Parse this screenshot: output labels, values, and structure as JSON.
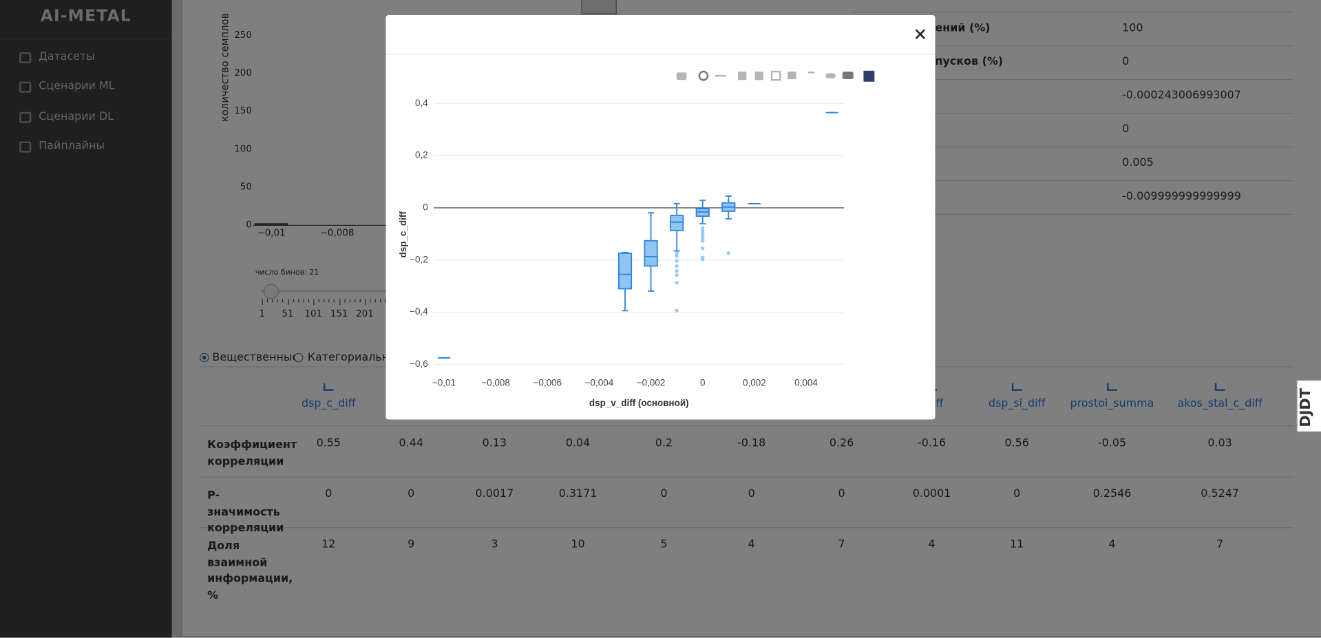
{
  "sidebar": {
    "logo": "AI-METAL",
    "menu": [
      "Датасеты",
      "Сценарии ML",
      "Сценарии DL",
      "Пайплайны"
    ]
  },
  "histogram": {
    "y_label": "количество семплов",
    "yticks": [
      0,
      50,
      100,
      150,
      200,
      250
    ],
    "xticks": [
      "−0,01",
      "−0,008"
    ],
    "bins_label": "число бинов: 21",
    "slider_ticks": [
      1,
      51,
      101,
      151,
      201
    ]
  },
  "stats": {
    "labels": [
      "ений (%)",
      "пусков (%)"
    ],
    "values": [
      100,
      0,
      -0.000243006993007,
      0,
      0.005,
      -0.009999999999999
    ]
  },
  "filter": {
    "options": [
      "Вещественные",
      "Категориальные"
    ]
  },
  "correlation": {
    "columns": [
      "dsp_c_diff",
      null,
      null,
      null,
      null,
      null,
      null,
      "_diff",
      "dsp_si_diff",
      "prostoi_summa",
      "akos_stal_c_diff"
    ],
    "rows": [
      {
        "label": "Коэффициент корреляции",
        "values": [
          0.55,
          0.44,
          0.13,
          0.04,
          0.2,
          -0.18,
          0.26,
          -0.16,
          0.56,
          -0.05,
          0.03
        ]
      },
      {
        "label": "P-значимость корреляции",
        "values": [
          0,
          0,
          0.0017,
          0.3171,
          0,
          0,
          0,
          0.0001,
          0,
          0.2546,
          0.5247
        ]
      },
      {
        "label": "Доля взаимной информации, %",
        "values": [
          12,
          9,
          3,
          10,
          5,
          4,
          7,
          4,
          11,
          4,
          7
        ]
      }
    ]
  },
  "modal": {
    "close": "×"
  },
  "djdt": "DJDT",
  "chart_data": {
    "type": "box",
    "x_label": "dsp_v_diff (основной)",
    "y_label": "dsp_c_diff",
    "xlim": [
      -0.01039,
      0.00547
    ],
    "ylim": [
      -0.64,
      0.435
    ],
    "xticks": [
      {
        "value": -0.01,
        "label": "−0,01"
      },
      {
        "value": -0.008,
        "label": "−0,008"
      },
      {
        "value": -0.006,
        "label": "−0,006"
      },
      {
        "value": -0.004,
        "label": "−0,004"
      },
      {
        "value": -0.002,
        "label": "−0,002"
      },
      0,
      {
        "value": 0.002,
        "label": "0,002"
      },
      {
        "value": 0.004,
        "label": "0,004"
      }
    ],
    "yticks": [
      {
        "value": -0.6,
        "label": "−0,6"
      },
      {
        "value": -0.4,
        "label": "−0,4"
      },
      {
        "value": -0.2,
        "label": "−0,2"
      },
      0,
      {
        "value": 0.2,
        "label": "0,2"
      },
      {
        "value": 0.4,
        "label": "0,4"
      }
    ],
    "grid": true,
    "color": "#2f86e0",
    "fill": "#8fc4f4",
    "boxes": [
      {
        "x": -0.01,
        "min": -0.575,
        "q1": -0.575,
        "median": -0.575,
        "q3": -0.575,
        "max": -0.575,
        "outliers": []
      },
      {
        "x": -0.003,
        "min": -0.394,
        "q1": -0.31,
        "median": -0.255,
        "q3": -0.174,
        "max": -0.171,
        "outliers": []
      },
      {
        "x": -0.002,
        "min": -0.319,
        "q1": -0.223,
        "median": -0.187,
        "q3": -0.126,
        "max": -0.019,
        "outliers": []
      },
      {
        "x": -0.001,
        "min": -0.165,
        "q1": -0.087,
        "median": -0.055,
        "q3": -0.029,
        "max": 0.016,
        "outliers": [
          -0.174,
          -0.184,
          -0.203,
          -0.223,
          -0.242,
          -0.258,
          -0.287,
          -0.394
        ]
      },
      {
        "x": 0,
        "min": -0.061,
        "q1": -0.032,
        "median": -0.016,
        "q3": -0.003,
        "max": 0.029,
        "outliers": [
          -0.077,
          -0.087,
          -0.097,
          -0.106,
          -0.116,
          -0.126,
          -0.155,
          -0.19,
          -0.197
        ]
      },
      {
        "x": 0.001,
        "min": -0.042,
        "q1": -0.013,
        "median": 0.003,
        "q3": 0.019,
        "max": 0.045,
        "outliers": [
          -0.174
        ]
      },
      {
        "x": 0.002,
        "min": 0.016,
        "q1": 0.016,
        "median": 0.016,
        "q3": 0.016,
        "max": 0.016,
        "outliers": []
      },
      {
        "x": 0.005,
        "min": 0.365,
        "q1": 0.365,
        "median": 0.365,
        "q3": 0.365,
        "max": 0.365,
        "outliers": []
      }
    ]
  }
}
